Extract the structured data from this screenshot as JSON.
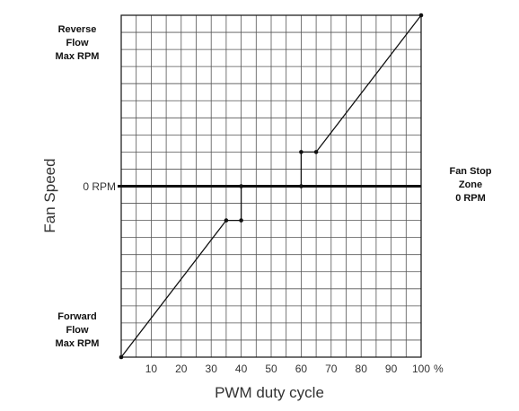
{
  "chart_data": {
    "type": "line",
    "xlabel": "PWM duty cycle",
    "ylabel": "Fan Speed",
    "x_unit": "%",
    "xlim": [
      0,
      100
    ],
    "ylim": [
      -100,
      100
    ],
    "x_ticks": [
      10,
      20,
      30,
      40,
      50,
      60,
      70,
      80,
      90,
      100
    ],
    "x_tick_labels": [
      "10",
      "20",
      "30",
      "40",
      "50",
      "60",
      "70",
      "80",
      "90",
      "100"
    ],
    "zero_line_label": "0 RPM",
    "grid": true,
    "y_labels": {
      "top": [
        "Reverse",
        "Flow",
        "Max RPM"
      ],
      "bottom": [
        "Forward",
        "Flow",
        "Max RPM"
      ]
    },
    "zone_annotation": [
      "Fan Stop",
      "Zone",
      "0 RPM"
    ],
    "series": [
      {
        "points": [
          [
            0,
            -100
          ],
          [
            35,
            -20
          ],
          [
            40,
            -20
          ],
          [
            40,
            0
          ],
          [
            60,
            0
          ],
          [
            60,
            20
          ],
          [
            65,
            20
          ],
          [
            100,
            100
          ]
        ]
      }
    ]
  }
}
